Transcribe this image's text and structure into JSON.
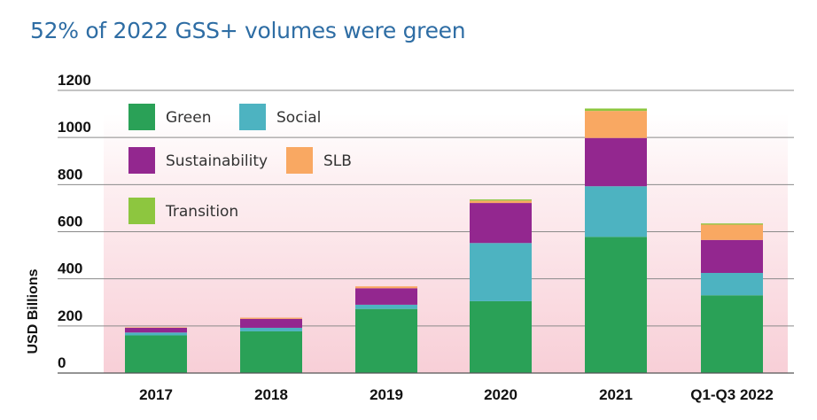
{
  "title": "52% of 2022 GSS+ volumes were green",
  "chart_data": {
    "type": "bar",
    "stacked": true,
    "categories": [
      "2017",
      "2018",
      "2019",
      "2020",
      "2021",
      "Q1-Q3 2022"
    ],
    "series": [
      {
        "name": "Green",
        "color": "#2aa157",
        "values": [
          160,
          177,
          272,
          305,
          578,
          330
        ]
      },
      {
        "name": "Social",
        "color": "#4db3c1",
        "values": [
          12,
          15,
          18,
          247,
          215,
          95
        ]
      },
      {
        "name": "Sustainability",
        "color": "#93278f",
        "values": [
          20,
          38,
          70,
          170,
          205,
          140
        ]
      },
      {
        "name": "SLB",
        "color": "#f9a862",
        "values": [
          2,
          5,
          8,
          10,
          115,
          65
        ]
      },
      {
        "name": "Transition",
        "color": "#8dc63f",
        "values": [
          0,
          0,
          0,
          5,
          10,
          5
        ]
      }
    ],
    "ylabel": "USD Billions",
    "xlabel": "",
    "ylim": [
      0,
      1200
    ],
    "yticks": [
      0,
      200,
      400,
      600,
      800,
      1000,
      1200
    ],
    "grid": true,
    "legend_position": "top-left"
  }
}
